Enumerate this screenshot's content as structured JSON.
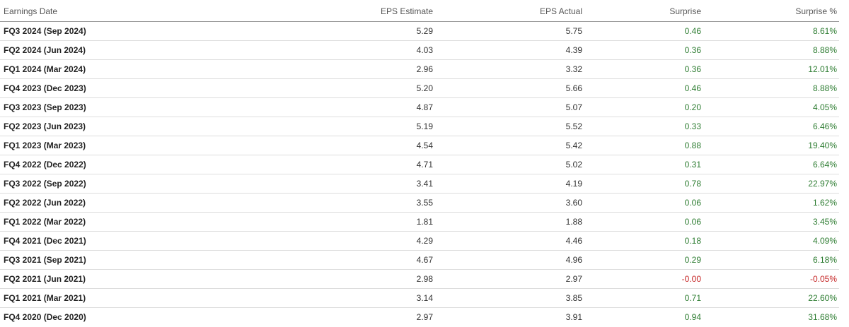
{
  "table": {
    "headers": {
      "date": "Earnings Date",
      "estimate": "EPS Estimate",
      "actual": "EPS Actual",
      "surprise": "Surprise",
      "surprise_pct": "Surprise %"
    },
    "rows": [
      {
        "date": "FQ3 2024 (Sep 2024)",
        "estimate": "5.29",
        "actual": "5.75",
        "surprise": "0.46",
        "surprise_pct": "8.61%",
        "sign": "pos"
      },
      {
        "date": "FQ2 2024 (Jun 2024)",
        "estimate": "4.03",
        "actual": "4.39",
        "surprise": "0.36",
        "surprise_pct": "8.88%",
        "sign": "pos"
      },
      {
        "date": "FQ1 2024 (Mar 2024)",
        "estimate": "2.96",
        "actual": "3.32",
        "surprise": "0.36",
        "surprise_pct": "12.01%",
        "sign": "pos"
      },
      {
        "date": "FQ4 2023 (Dec 2023)",
        "estimate": "5.20",
        "actual": "5.66",
        "surprise": "0.46",
        "surprise_pct": "8.88%",
        "sign": "pos"
      },
      {
        "date": "FQ3 2023 (Sep 2023)",
        "estimate": "4.87",
        "actual": "5.07",
        "surprise": "0.20",
        "surprise_pct": "4.05%",
        "sign": "pos"
      },
      {
        "date": "FQ2 2023 (Jun 2023)",
        "estimate": "5.19",
        "actual": "5.52",
        "surprise": "0.33",
        "surprise_pct": "6.46%",
        "sign": "pos"
      },
      {
        "date": "FQ1 2023 (Mar 2023)",
        "estimate": "4.54",
        "actual": "5.42",
        "surprise": "0.88",
        "surprise_pct": "19.40%",
        "sign": "pos"
      },
      {
        "date": "FQ4 2022 (Dec 2022)",
        "estimate": "4.71",
        "actual": "5.02",
        "surprise": "0.31",
        "surprise_pct": "6.64%",
        "sign": "pos"
      },
      {
        "date": "FQ3 2022 (Sep 2022)",
        "estimate": "3.41",
        "actual": "4.19",
        "surprise": "0.78",
        "surprise_pct": "22.97%",
        "sign": "pos"
      },
      {
        "date": "FQ2 2022 (Jun 2022)",
        "estimate": "3.55",
        "actual": "3.60",
        "surprise": "0.06",
        "surprise_pct": "1.62%",
        "sign": "pos"
      },
      {
        "date": "FQ1 2022 (Mar 2022)",
        "estimate": "1.81",
        "actual": "1.88",
        "surprise": "0.06",
        "surprise_pct": "3.45%",
        "sign": "pos"
      },
      {
        "date": "FQ4 2021 (Dec 2021)",
        "estimate": "4.29",
        "actual": "4.46",
        "surprise": "0.18",
        "surprise_pct": "4.09%",
        "sign": "pos"
      },
      {
        "date": "FQ3 2021 (Sep 2021)",
        "estimate": "4.67",
        "actual": "4.96",
        "surprise": "0.29",
        "surprise_pct": "6.18%",
        "sign": "pos"
      },
      {
        "date": "FQ2 2021 (Jun 2021)",
        "estimate": "2.98",
        "actual": "2.97",
        "surprise": "-0.00",
        "surprise_pct": "-0.05%",
        "sign": "neg"
      },
      {
        "date": "FQ1 2021 (Mar 2021)",
        "estimate": "3.14",
        "actual": "3.85",
        "surprise": "0.71",
        "surprise_pct": "22.60%",
        "sign": "pos"
      },
      {
        "date": "FQ4 2020 (Dec 2020)",
        "estimate": "2.97",
        "actual": "3.91",
        "surprise": "0.94",
        "surprise_pct": "31.68%",
        "sign": "pos"
      }
    ]
  },
  "colors": {
    "positive": "#2e7d32",
    "negative": "#c62828"
  }
}
